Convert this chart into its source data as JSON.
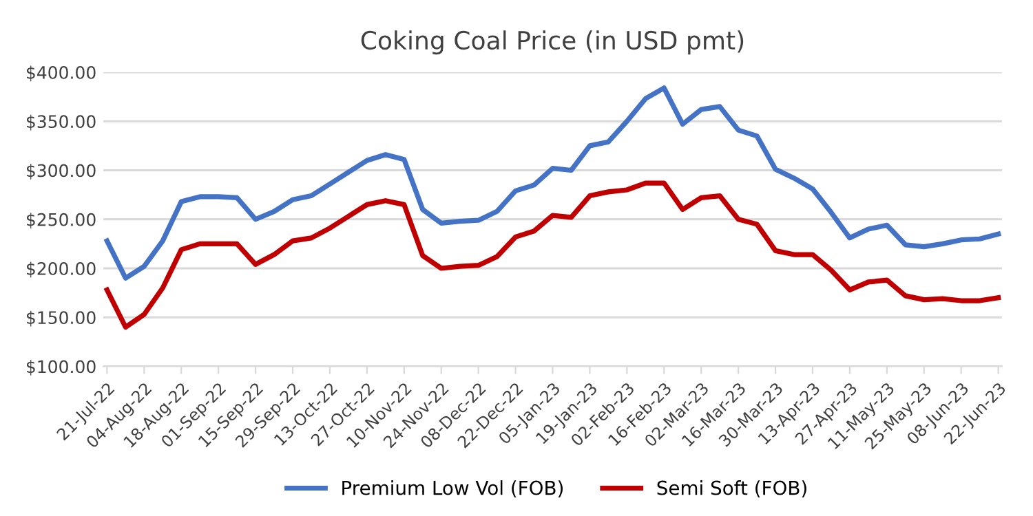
{
  "chart_data": {
    "type": "line",
    "title": "Coking Coal Price (in USD pmt)",
    "categories": [
      "21-Jul-22",
      null,
      "04-Aug-22",
      null,
      "18-Aug-22",
      null,
      "01-Sep-22",
      null,
      "15-Sep-22",
      null,
      "29-Sep-22",
      null,
      "13-Oct-22",
      null,
      "27-Oct-22",
      null,
      "10-Nov-22",
      null,
      "24-Nov-22",
      null,
      "08-Dec-22",
      null,
      "22-Dec-22",
      null,
      "05-Jan-23",
      null,
      "19-Jan-23",
      null,
      "02-Feb-23",
      null,
      "16-Feb-23",
      null,
      "02-Mar-23",
      null,
      "16-Mar-23",
      null,
      "30-Mar-23",
      null,
      "13-Apr-23",
      null,
      "27-Apr-23",
      null,
      "11-May-23",
      null,
      "25-May-23",
      null,
      "08-Jun-23",
      null,
      "22-Jun-23"
    ],
    "series": [
      {
        "name": "Premium Low Vol (FOB)",
        "color": "#4472c4",
        "values": [
          228,
          190,
          202,
          228,
          268,
          273,
          273,
          272,
          250,
          258,
          270,
          274,
          286,
          298,
          310,
          316,
          311,
          260,
          246,
          248,
          249,
          258,
          279,
          285,
          302,
          300,
          325,
          329,
          350,
          373,
          384,
          347,
          362,
          365,
          341,
          335,
          301,
          292,
          281,
          257,
          231,
          240,
          244,
          224,
          222,
          225,
          229,
          230,
          235
        ]
      },
      {
        "name": "Semi Soft (FOB)",
        "color": "#c00000",
        "values": [
          178,
          140,
          153,
          180,
          219,
          225,
          225,
          225,
          204,
          214,
          228,
          231,
          241,
          253,
          265,
          269,
          265,
          213,
          200,
          202,
          203,
          212,
          232,
          238,
          254,
          252,
          274,
          278,
          280,
          287,
          287,
          260,
          272,
          274,
          250,
          245,
          218,
          214,
          214,
          198,
          178,
          186,
          188,
          172,
          168,
          169,
          167,
          167,
          170
        ]
      }
    ],
    "ylim": [
      100,
      400
    ],
    "yticks": [
      {
        "value": 100,
        "label": "$100.00"
      },
      {
        "value": 150,
        "label": "$150.00"
      },
      {
        "value": 200,
        "label": "$200.00"
      },
      {
        "value": 250,
        "label": "$250.00"
      },
      {
        "value": 300,
        "label": "$300.00"
      },
      {
        "value": 350,
        "label": "$350.00"
      },
      {
        "value": 400,
        "label": "$400.00"
      }
    ],
    "grid": "y",
    "legend": "bottom",
    "marker": "none",
    "line_style": "solid"
  }
}
